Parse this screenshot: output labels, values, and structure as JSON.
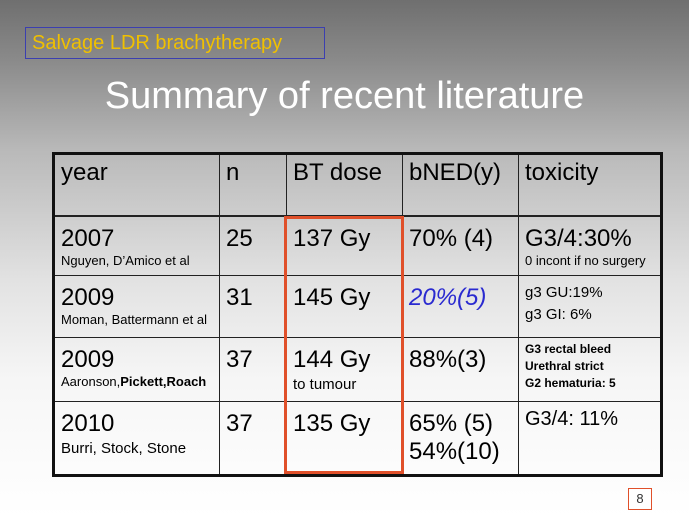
{
  "tag": "Salvage LDR brachytherapy",
  "title": "Summary of recent literature",
  "table": {
    "headers": [
      "year",
      "n",
      "BT dose",
      "bNED(y)",
      "toxicity"
    ],
    "rows": [
      {
        "year": "2007",
        "authors": "Nguyen, D’Amico et al",
        "n": "25",
        "dose": "137 Gy",
        "dose_note": "",
        "bned": "70% (4)",
        "bned2": "",
        "tox1": "G3/4:30%",
        "tox2": "0 incont if no surgery",
        "tox3": ""
      },
      {
        "year": "2009",
        "authors": "Moman, Battermann et al",
        "n": "31",
        "dose": "145 Gy",
        "dose_note": "",
        "bned": "20%(5)",
        "bned2": "",
        "tox1": "g3 GU:19%",
        "tox2": "g3 GI: 6%",
        "tox3": ""
      },
      {
        "year": "2009",
        "authors_a": "Aaronson,",
        "authors_b": "Pickett,Roach",
        "n": "37",
        "dose": "144 Gy",
        "dose_note": "to tumour",
        "bned": "88%(3)",
        "bned2": "",
        "tox1": "G3 rectal bleed",
        "tox2": "Urethral strict",
        "tox3": "G2 hematuria: 5"
      },
      {
        "year": "2010",
        "authors": "Burri, Stock, Stone",
        "n": "37",
        "dose": "135 Gy",
        "dose_note": "",
        "bned": "65% (5)",
        "bned2": "54%(10)",
        "tox1": "G3/4: 11%",
        "tox2": "",
        "tox3": ""
      }
    ]
  },
  "page_number": "8",
  "colors": {
    "tag_text": "#f0c000",
    "tag_border": "#3b3fb0",
    "highlight_box": "#e0502a",
    "italic_value": "#2a2ad0"
  }
}
